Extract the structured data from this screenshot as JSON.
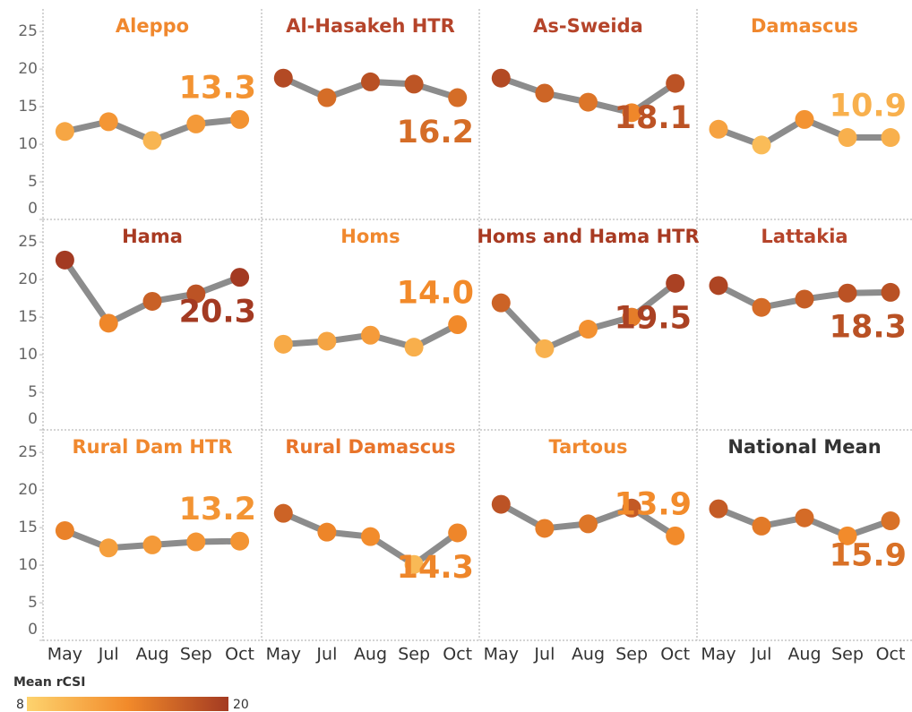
{
  "chart_data": {
    "type": "line",
    "categories": [
      "May",
      "Jul",
      "Aug",
      "Sep",
      "Oct"
    ],
    "ylim": [
      0,
      28
    ],
    "yticks": [
      0,
      5,
      10,
      15,
      20,
      25
    ],
    "line_color": "#8c8c8c",
    "color_scale": {
      "title": "Mean rCSI",
      "min": 8,
      "max": 20,
      "colors": [
        "#fdd36e",
        "#f28a2a",
        "#a33a22"
      ]
    },
    "panels": [
      {
        "title": "Aleppo",
        "title_color": "#f0882e",
        "values": [
          11.7,
          13.0,
          10.5,
          12.7,
          13.3
        ],
        "value_label": "13.3"
      },
      {
        "title": "Al-Hasakeh HTR",
        "title_color": "#b5442a",
        "values": [
          18.8,
          16.2,
          18.3,
          18.0,
          16.2
        ],
        "value_label": "16.2"
      },
      {
        "title": "As-Sweida",
        "title_color": "#b5442a",
        "values": [
          18.8,
          16.8,
          15.6,
          14.2,
          18.1
        ],
        "value_label": "18.1"
      },
      {
        "title": "Damascus",
        "title_color": "#f0882e",
        "values": [
          12.0,
          9.9,
          13.3,
          10.9,
          10.9
        ],
        "value_label": "10.9"
      },
      {
        "title": "Hama",
        "title_color": "#a83a22",
        "values": [
          22.6,
          14.2,
          17.1,
          18.1,
          20.3
        ],
        "value_label": "20.3"
      },
      {
        "title": "Homs",
        "title_color": "#f0882e",
        "values": [
          11.4,
          11.8,
          12.6,
          11.0,
          14.0
        ],
        "value_label": "14.0"
      },
      {
        "title": "Homs and Hama HTR",
        "title_color": "#a83a22",
        "values": [
          16.9,
          10.8,
          13.4,
          15.0,
          19.5
        ],
        "value_label": "19.5"
      },
      {
        "title": "Lattakia",
        "title_color": "#b5442a",
        "values": [
          19.2,
          16.3,
          17.4,
          18.2,
          18.3
        ],
        "value_label": "18.3"
      },
      {
        "title": "Rural Dam HTR",
        "title_color": "#f0882e",
        "values": [
          14.6,
          12.3,
          12.7,
          13.1,
          13.2
        ],
        "value_label": "13.2"
      },
      {
        "title": "Rural Damascus",
        "title_color": "#e8742a",
        "values": [
          16.9,
          14.4,
          13.8,
          10.1,
          14.3
        ],
        "value_label": "14.3"
      },
      {
        "title": "Tartous",
        "title_color": "#f0882e",
        "values": [
          18.1,
          14.9,
          15.5,
          17.6,
          13.9
        ],
        "value_label": "13.9"
      },
      {
        "title": "National Mean",
        "title_color": "#333333",
        "values": [
          17.5,
          15.2,
          16.3,
          13.9,
          15.9
        ],
        "value_label": "15.9"
      }
    ]
  }
}
